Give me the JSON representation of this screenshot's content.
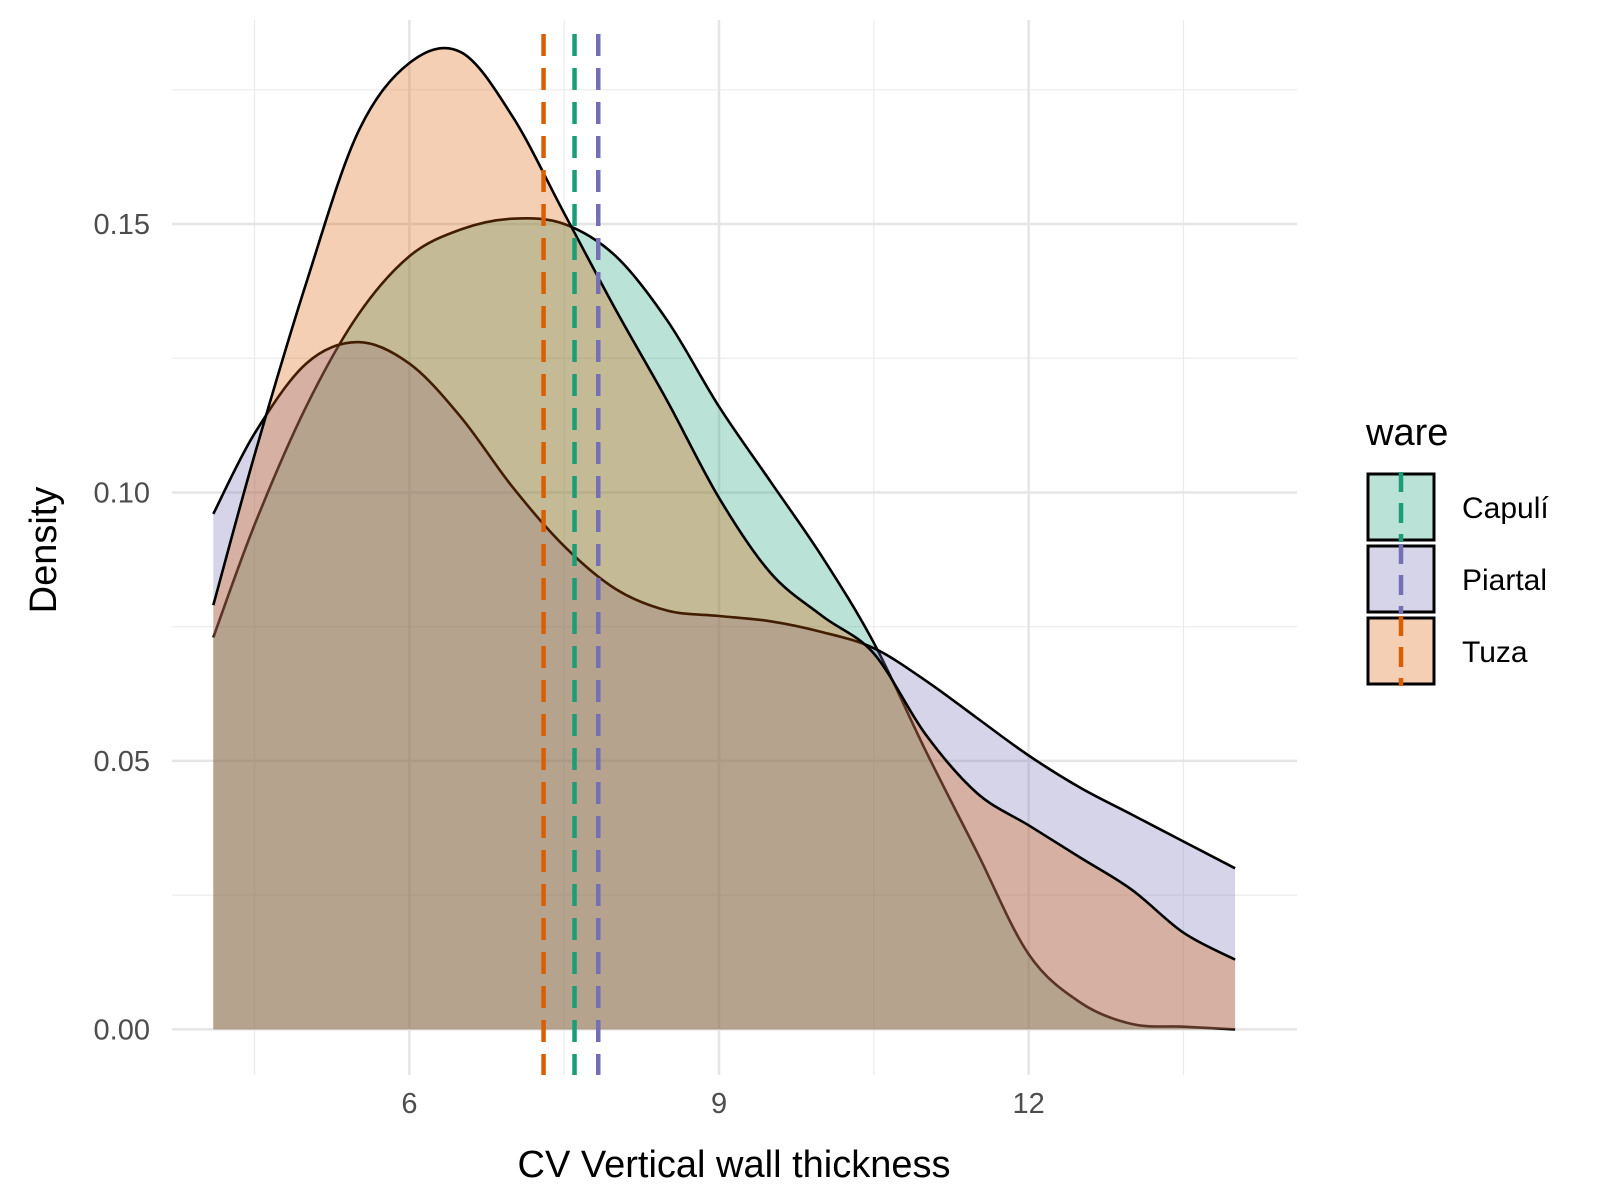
{
  "chart_data": {
    "type": "area",
    "xlabel": "CV Vertical wall thickness",
    "ylabel": "Density",
    "xlim": [
      3.7,
      14.6
    ],
    "ylim": [
      -0.0085,
      0.188
    ],
    "x_ticks": [
      6,
      9,
      12
    ],
    "x_tick_labels": [
      "6",
      "9",
      "12"
    ],
    "y_ticks": [
      0.0,
      0.05,
      0.1,
      0.15
    ],
    "y_tick_labels": [
      "0.00",
      "0.05",
      "0.10",
      "0.15"
    ],
    "grid": true,
    "legend": {
      "title": "ware",
      "position": "right"
    },
    "series": [
      {
        "name": "Capulí",
        "fill": "#1b9e77",
        "mean_line": 7.6,
        "x": [
          4.1,
          4.5,
          5.0,
          5.5,
          6.0,
          6.5,
          7.0,
          7.5,
          8.0,
          8.5,
          9.0,
          9.5,
          10.0,
          10.5,
          11.0,
          11.5,
          12.0,
          12.5,
          13.0,
          13.5,
          14.0
        ],
        "y": [
          0.073,
          0.094,
          0.116,
          0.133,
          0.144,
          0.149,
          0.151,
          0.15,
          0.144,
          0.132,
          0.116,
          0.102,
          0.088,
          0.072,
          0.052,
          0.033,
          0.014,
          0.005,
          0.001,
          0.0005,
          0.0
        ]
      },
      {
        "name": "Piartal",
        "fill": "#7570b3",
        "mean_line": 7.83,
        "x": [
          4.1,
          4.5,
          5.0,
          5.5,
          6.0,
          6.5,
          7.0,
          7.5,
          8.0,
          8.5,
          9.0,
          9.5,
          10.0,
          10.5,
          11.0,
          11.5,
          12.0,
          12.5,
          13.0,
          13.5,
          14.0
        ],
        "y": [
          0.096,
          0.111,
          0.124,
          0.128,
          0.124,
          0.114,
          0.101,
          0.09,
          0.082,
          0.078,
          0.077,
          0.076,
          0.074,
          0.071,
          0.065,
          0.058,
          0.051,
          0.045,
          0.04,
          0.035,
          0.03
        ]
      },
      {
        "name": "Tuza",
        "fill": "#d95f02",
        "mean_line": 7.3,
        "x": [
          4.1,
          4.5,
          5.0,
          5.5,
          6.0,
          6.5,
          7.0,
          7.5,
          8.0,
          8.5,
          9.0,
          9.5,
          10.0,
          10.5,
          11.0,
          11.5,
          12.0,
          12.5,
          13.0,
          13.5,
          14.0
        ],
        "y": [
          0.079,
          0.107,
          0.139,
          0.167,
          0.18,
          0.182,
          0.17,
          0.152,
          0.134,
          0.117,
          0.099,
          0.085,
          0.077,
          0.07,
          0.055,
          0.044,
          0.038,
          0.032,
          0.026,
          0.018,
          0.013
        ]
      }
    ]
  }
}
